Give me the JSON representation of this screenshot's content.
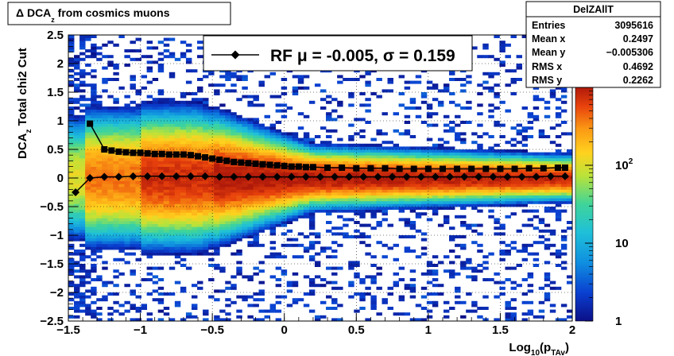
{
  "title": {
    "prefix": "Δ DCA",
    "sub": "z",
    "suffix": " from cosmics muons"
  },
  "yaxis": {
    "main": "DCA",
    "sub": "z",
    "rest": "  Total chi2 Cut"
  },
  "xaxis": {
    "prefix": "Log",
    "sub1": "10",
    "mid": "(p",
    "sub2": "TAv",
    "suffix": ")"
  },
  "stats": {
    "name": "DelZAllT",
    "rows": [
      {
        "label": "Entries",
        "value": "3095616"
      },
      {
        "label": "Mean x",
        "value": "0.2497"
      },
      {
        "label": "Mean y",
        "value": "−0.005306"
      },
      {
        "label": "RMS x",
        "value": "0.4692"
      },
      {
        "label": "RMS y",
        "value": "0.2262"
      }
    ]
  },
  "legend": {
    "text": "RF μ = -0.005, σ =   0.159"
  },
  "chart_data": {
    "type": "heatmap",
    "xlim": [
      -1.5,
      2
    ],
    "ylim": [
      -2.5,
      2.5
    ],
    "xticks": [
      {
        "v": -1.5,
        "label": "−1.5"
      },
      {
        "v": -1,
        "label": "−1"
      },
      {
        "v": -0.5,
        "label": "−0.5"
      },
      {
        "v": 0,
        "label": "0"
      },
      {
        "v": 0.5,
        "label": "0.5"
      },
      {
        "v": 1,
        "label": "1"
      },
      {
        "v": 1.5,
        "label": "1.5"
      },
      {
        "v": 2,
        "label": "2"
      }
    ],
    "yticks": [
      {
        "v": 2.5,
        "label": "2.5"
      },
      {
        "v": 2,
        "label": "2"
      },
      {
        "v": 1.5,
        "label": "1.5"
      },
      {
        "v": 1,
        "label": "1"
      },
      {
        "v": 0.5,
        "label": "0.5"
      },
      {
        "v": 0,
        "label": "0"
      },
      {
        "v": -0.5,
        "label": "−0.5"
      },
      {
        "v": -1,
        "label": "−1"
      },
      {
        "v": -1.5,
        "label": "−1.5"
      },
      {
        "v": -2,
        "label": "−2"
      },
      {
        "v": -2.5,
        "label": "−2.5"
      }
    ],
    "zscale": "log",
    "zlim": [
      1,
      1000
    ],
    "zticks": [
      {
        "v": 1,
        "label": "1"
      },
      {
        "v": 10,
        "label": "10"
      },
      {
        "v": 100,
        "label": "10",
        "exp": "2"
      }
    ],
    "grid": true,
    "mean_x": [
      -1.45,
      -1.35,
      -1.25,
      -1.15,
      -1.05,
      -0.95,
      -0.85,
      -0.75,
      -0.65,
      -0.55,
      -0.45,
      -0.35,
      -0.25,
      -0.15,
      -0.05,
      0.05,
      0.15,
      0.25,
      0.35,
      0.45,
      0.55,
      0.65,
      0.75,
      0.85,
      0.95,
      1.05,
      1.15,
      1.25,
      1.35,
      1.45,
      1.55,
      1.65,
      1.75,
      1.85,
      1.95
    ],
    "mean_y": [
      -0.25,
      0.0,
      0.02,
      0.02,
      0.03,
      0.03,
      0.03,
      0.03,
      0.03,
      0.03,
      0.02,
      0.02,
      0.02,
      0.02,
      0.02,
      0.02,
      0.02,
      0.02,
      0.02,
      0.02,
      0.02,
      0.02,
      0.02,
      0.02,
      0.02,
      0.02,
      0.02,
      0.02,
      0.02,
      0.02,
      0.02,
      0.02,
      0.02,
      0.03,
      0.03
    ],
    "rms_x": [
      -1.35,
      -1.25,
      -1.2,
      -1.15,
      -1.1,
      -1.05,
      -1.0,
      -0.95,
      -0.9,
      -0.85,
      -0.8,
      -0.75,
      -0.7,
      -0.65,
      -0.6,
      -0.55,
      -0.5,
      -0.45,
      -0.4,
      -0.35,
      -0.3,
      -0.25,
      -0.2,
      -0.15,
      -0.1,
      -0.05,
      0.0,
      0.05,
      0.1,
      0.15,
      0.2,
      0.3,
      0.4,
      0.5,
      0.6,
      0.7,
      0.8,
      0.9,
      1.0,
      1.1,
      1.2,
      1.3,
      1.4,
      1.5,
      1.6,
      1.7,
      1.8,
      1.9,
      1.95
    ],
    "rms_y": [
      0.95,
      0.5,
      0.48,
      0.46,
      0.45,
      0.44,
      0.44,
      0.43,
      0.42,
      0.42,
      0.41,
      0.41,
      0.41,
      0.4,
      0.38,
      0.36,
      0.34,
      0.32,
      0.3,
      0.28,
      0.27,
      0.26,
      0.25,
      0.24,
      0.23,
      0.22,
      0.21,
      0.2,
      0.2,
      0.19,
      0.19,
      0.18,
      0.18,
      0.17,
      0.17,
      0.17,
      0.16,
      0.16,
      0.16,
      0.16,
      0.16,
      0.16,
      0.16,
      0.16,
      0.16,
      0.17,
      0.17,
      0.18,
      0.18
    ]
  }
}
